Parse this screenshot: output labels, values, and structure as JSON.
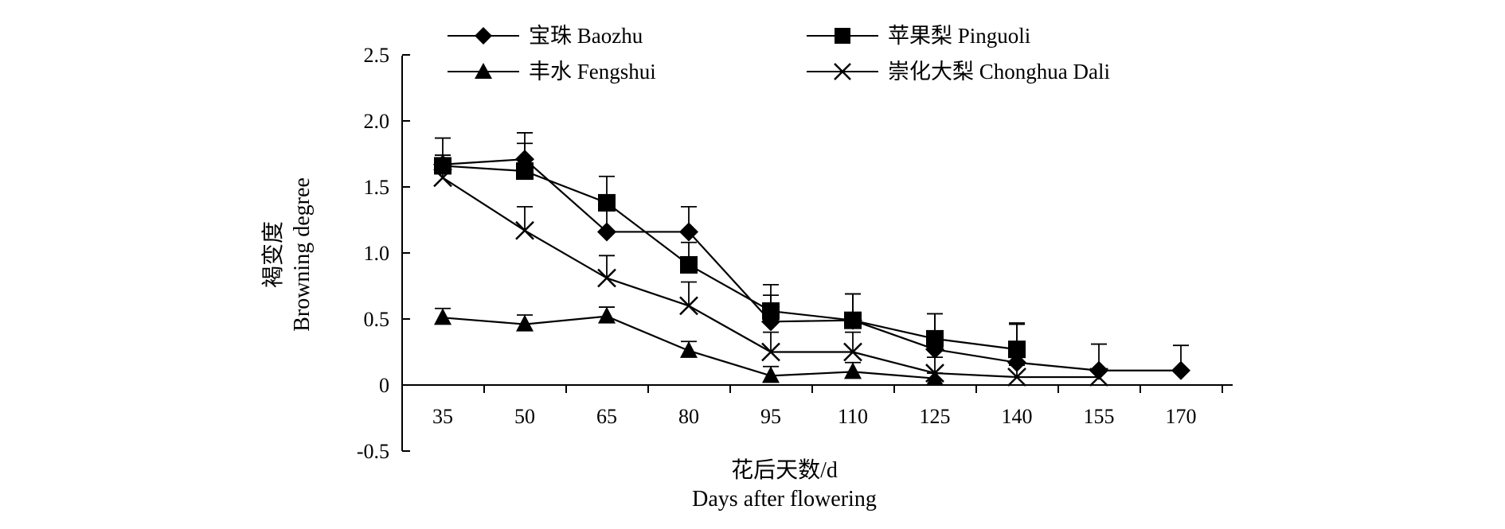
{
  "chart_data": {
    "type": "line",
    "title": "",
    "ylabel": [
      "褐变度",
      "Browning degree"
    ],
    "xlabel": [
      "花后天数/d",
      "Days after flowering"
    ],
    "ylim": [
      -0.5,
      2.5
    ],
    "y_ticks": [
      "2.5",
      "2.0",
      "1.5",
      "1.0",
      "0.5",
      "0",
      "-0.5"
    ],
    "y_tick_values": [
      2.5,
      2.0,
      1.5,
      1.0,
      0.5,
      0,
      -0.5
    ],
    "categories": [
      "35",
      "50",
      "65",
      "80",
      "95",
      "110",
      "125",
      "140",
      "155",
      "170"
    ],
    "grid": false,
    "legend_position": "top",
    "series": [
      {
        "name": "宝珠 Baozhu",
        "marker": "diamond",
        "values": [
          1.67,
          1.71,
          1.16,
          1.16,
          0.48,
          0.49,
          0.27,
          0.17,
          0.11,
          0.11
        ],
        "errors": [
          0.07,
          0.2,
          0.18,
          0.19,
          0.2,
          0.2,
          0.27,
          0.29,
          0.2,
          0.19
        ]
      },
      {
        "name": "苹果梨 Pinguoli",
        "marker": "square",
        "values": [
          1.66,
          1.62,
          1.38,
          0.91,
          0.56,
          0.49,
          0.35,
          0.27,
          null,
          null
        ],
        "errors": [
          0.21,
          0.21,
          0.2,
          0.17,
          0.2,
          0.2,
          0.19,
          0.2,
          null,
          null
        ]
      },
      {
        "name": "丰水 Fengshui",
        "marker": "triangle",
        "values": [
          0.51,
          0.46,
          0.52,
          0.26,
          0.07,
          0.1,
          0.05,
          null,
          null,
          null
        ],
        "errors": [
          0.07,
          0.07,
          0.07,
          0.07,
          0.07,
          0.07,
          0.04,
          null,
          null,
          null
        ]
      },
      {
        "name": "崇化大梨 Chonghua Dali",
        "marker": "x",
        "values": [
          1.57,
          1.17,
          0.81,
          0.6,
          0.25,
          0.25,
          0.09,
          0.06,
          0.06,
          null
        ],
        "errors": [
          0.17,
          0.18,
          0.17,
          0.18,
          0.15,
          0.15,
          0.12,
          0.09,
          0.05,
          null
        ]
      }
    ]
  }
}
